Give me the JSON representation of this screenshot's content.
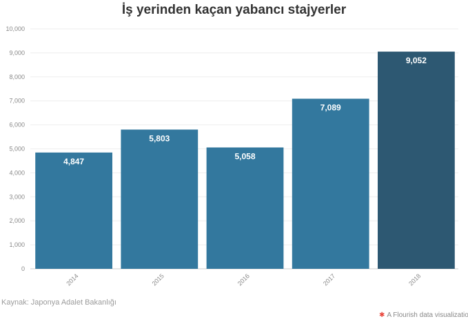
{
  "chart_data": {
    "type": "bar",
    "title": "İş yerinden kaçan yabancı stajyerler",
    "categories": [
      "2014",
      "2015",
      "2016",
      "2017",
      "2018"
    ],
    "values": [
      4847,
      5803,
      5058,
      7089,
      9052
    ],
    "value_labels": [
      "4,847",
      "5,803",
      "5,058",
      "7,089",
      "9,052"
    ],
    "ylim": [
      0,
      10000
    ],
    "yticks": [
      0,
      1000,
      2000,
      3000,
      4000,
      5000,
      6000,
      7000,
      8000,
      9000,
      10000
    ],
    "ytick_labels": [
      "0",
      "1,000",
      "2,000",
      "3,000",
      "4,000",
      "5,000",
      "6,000",
      "7,000",
      "8,000",
      "9,000",
      "10,000"
    ],
    "xlabel": "",
    "ylabel": "",
    "grid": true,
    "colors": {
      "bar": "#33789e",
      "highlight": "#2d5872",
      "value_label": "#ffffff",
      "grid": "#eeeeee",
      "tick_label": "#888888"
    },
    "highlight_index": 4
  },
  "footer": {
    "source": "Kaynak: Japonya Adalet Bakanlığı",
    "credit": "A Flourish data visualization"
  }
}
